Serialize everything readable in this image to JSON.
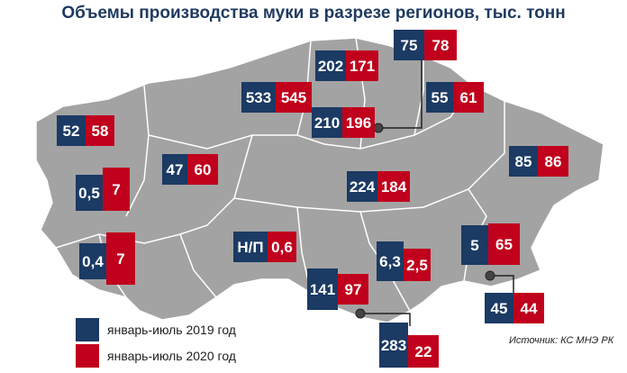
{
  "title": "Объемы производства муки в разрезе регионов, тыс. тонн",
  "colors": {
    "y2019": "#1b3a64",
    "y2020": "#c0001c",
    "land": "#a3a3a3",
    "border": "#ffffff"
  },
  "legend": {
    "y2019": "январь-июль 2019 год",
    "y2020": "январь-июль 2020 год"
  },
  "source": "Источник: КС МНЭ РК",
  "regions": [
    {
      "v2019": "75",
      "v2020": "78"
    },
    {
      "v2019": "202",
      "v2020": "171"
    },
    {
      "v2019": "533",
      "v2020": "545"
    },
    {
      "v2019": "55",
      "v2020": "61"
    },
    {
      "v2019": "210",
      "v2020": "196"
    },
    {
      "v2019": "52",
      "v2020": "58"
    },
    {
      "v2019": "47",
      "v2020": "60"
    },
    {
      "v2019": "85",
      "v2020": "86"
    },
    {
      "v2019": "0,5",
      "v2020": "7"
    },
    {
      "v2019": "224",
      "v2020": "184"
    },
    {
      "v2019": "Н/П",
      "v2020": "0,6"
    },
    {
      "v2019": "5",
      "v2020": "65"
    },
    {
      "v2019": "0,4",
      "v2020": "7"
    },
    {
      "v2019": "6,3",
      "v2020": "2,5"
    },
    {
      "v2019": "141",
      "v2020": "97"
    },
    {
      "v2019": "45",
      "v2020": "44"
    },
    {
      "v2019": "283",
      "v2020": "22"
    }
  ]
}
